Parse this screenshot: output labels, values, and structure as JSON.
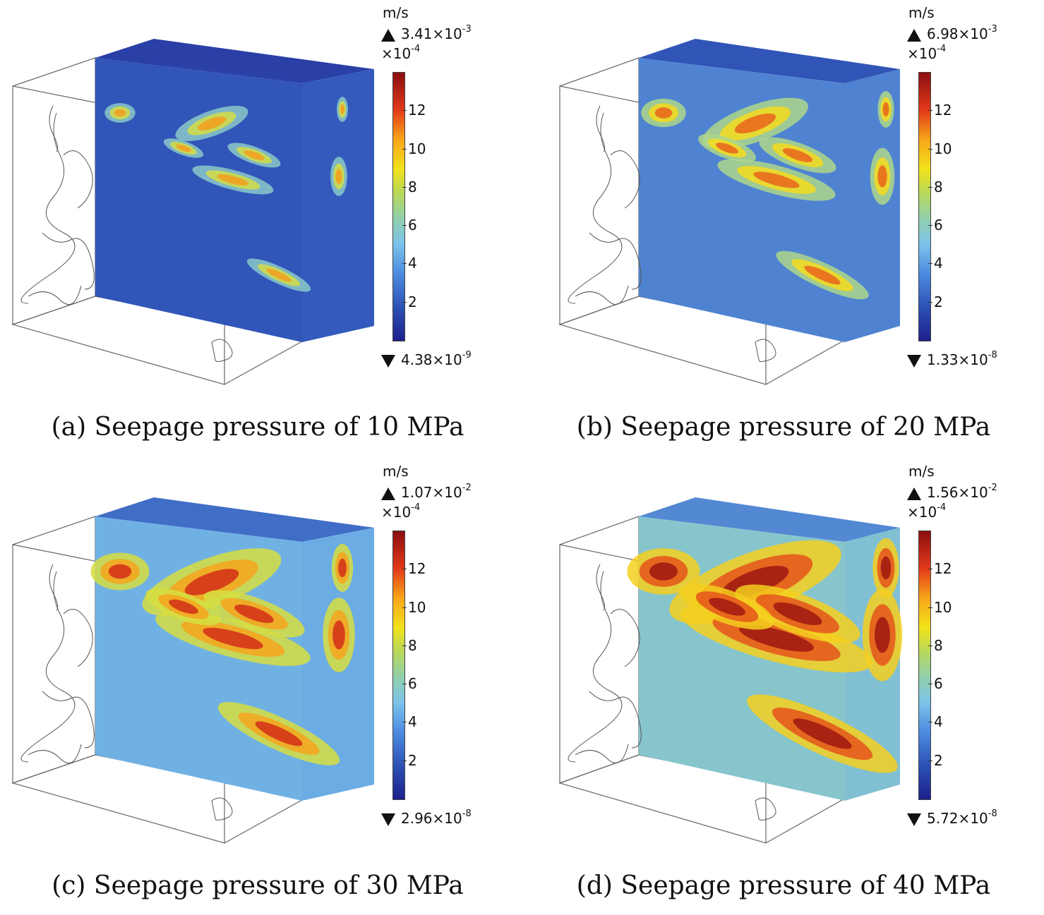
{
  "figure": {
    "unit": "m/s",
    "colorbar_scale": "×10",
    "colorbar_scale_exp": "-4",
    "colorbar_ticks": [
      "2",
      "4",
      "6",
      "8",
      "10",
      "12"
    ],
    "colors": {
      "low": "#1e1f8c",
      "mid": "#8fcfb0",
      "high": "#8b0e10"
    }
  },
  "panels": [
    {
      "caption": "(a) Seepage pressure of 10 MPa",
      "max_mantissa": "3.41×10",
      "max_exp": "-3",
      "min_mantissa": "4.38×10",
      "min_exp": "-9",
      "level": 0.15
    },
    {
      "caption": "(b) Seepage pressure of 20 MPa",
      "max_mantissa": "6.98×10",
      "max_exp": "-3",
      "min_mantissa": "1.33×10",
      "min_exp": "-8",
      "level": 0.4
    },
    {
      "caption": "(c) Seepage pressure of 30 MPa",
      "max_mantissa": "1.07×10",
      "max_exp": "-2",
      "min_mantissa": "2.96×10",
      "min_exp": "-8",
      "level": 0.65
    },
    {
      "caption": "(d) Seepage pressure of 40 MPa",
      "max_mantissa": "1.56×10",
      "max_exp": "-2",
      "min_mantissa": "5.72×10",
      "min_exp": "-8",
      "level": 0.9
    }
  ]
}
